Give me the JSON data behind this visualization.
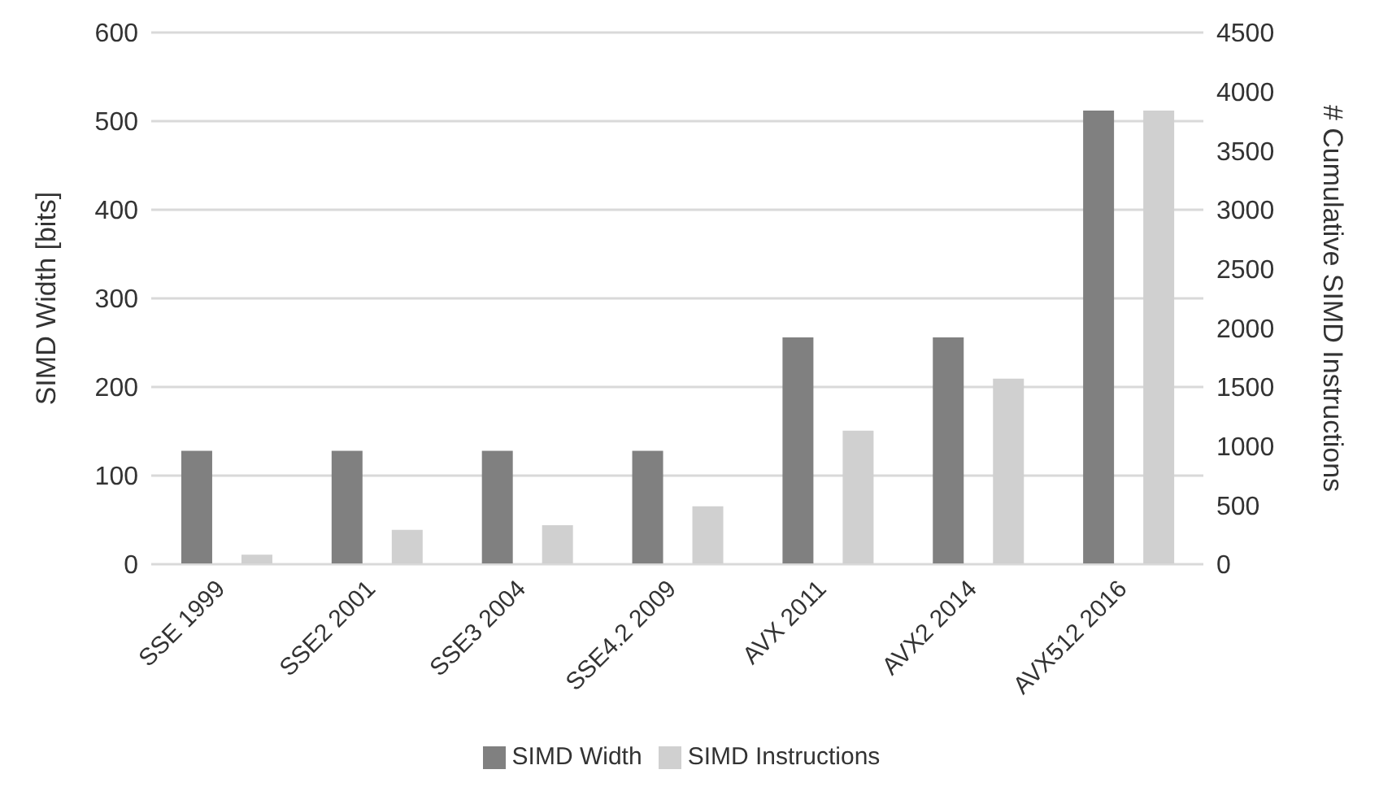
{
  "chart_data": {
    "type": "bar",
    "ylabel": "SIMD Width [bits]",
    "y2label": "# Cumulative  SIMD Instructions",
    "categories": [
      "SSE 1999",
      "SSE2 2001",
      "SSE3 2004",
      "SSE4.2 2009",
      "AVX 2011",
      "AVX2 2014",
      "AVX512 2016"
    ],
    "series": [
      {
        "name": "SIMD Width",
        "color": "#808080",
        "values": [
          128,
          128,
          128,
          128,
          256,
          256,
          512
        ]
      },
      {
        "name": "SIMD Instructions",
        "color": "#d0d0d0",
        "axis": "y2",
        "values": [
          80,
          290,
          330,
          490,
          1130,
          1570,
          3840
        ]
      }
    ],
    "ylim": [
      0,
      600
    ],
    "yticks": [
      0,
      100,
      200,
      300,
      400,
      500,
      600
    ],
    "y2lim": [
      0,
      4500
    ],
    "y2ticks": [
      0,
      500,
      1000,
      1500,
      2000,
      2500,
      3000,
      3500,
      4000,
      4500
    ],
    "grid": "y",
    "legend": "bottom"
  }
}
